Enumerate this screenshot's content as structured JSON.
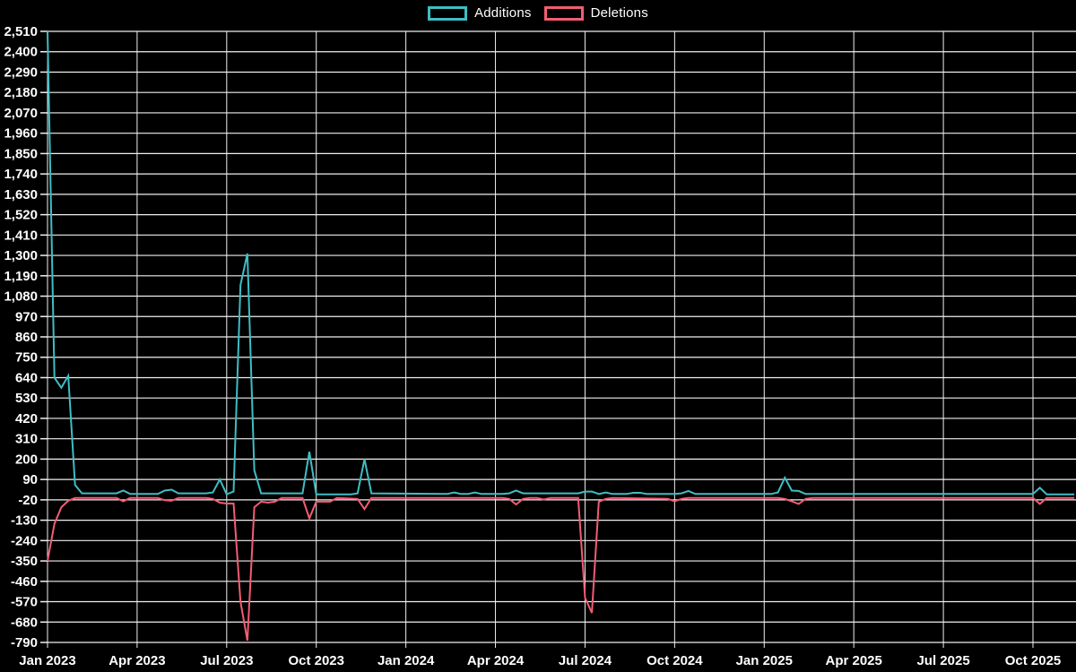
{
  "legend": {
    "items": [
      {
        "label": "Additions",
        "color": "#3ebec4"
      },
      {
        "label": "Deletions",
        "color": "#f25d73"
      }
    ]
  },
  "chart_data": {
    "type": "line",
    "title": "",
    "background": "#000000",
    "grid": {
      "horizontal": true,
      "vertical": true,
      "color": "#f0f0f0"
    },
    "legend_position": "top-center",
    "y_axis": {
      "min": -790,
      "max": 2510,
      "tick_step": 110,
      "tick_labels": [
        "2,510",
        "2,400",
        "2,290",
        "2,180",
        "2,070",
        "1,960",
        "1,850",
        "1,740",
        "1,630",
        "1,520",
        "1,410",
        "1,300",
        "1,190",
        "1,080",
        "970",
        "860",
        "750",
        "640",
        "530",
        "420",
        "310",
        "200",
        "90",
        "-20",
        "-130",
        "-240",
        "-350",
        "-460",
        "-570",
        "-680",
        "-790"
      ]
    },
    "x_axis": {
      "unit": "weeks since Jan 2023",
      "tick_labels": [
        "Jan 2023",
        "Apr 2023",
        "Jul 2023",
        "Oct 2023",
        "Jan 2024",
        "Apr 2024",
        "Jul 2024",
        "Oct 2024",
        "Jan 2025",
        "Apr 2025",
        "Jul 2025",
        "Oct 2025"
      ],
      "weeks_per_tick": 13,
      "total_weeks": 149
    },
    "series": [
      {
        "name": "Additions",
        "color": "#3ebec4",
        "points": [
          [
            0,
            2510
          ],
          [
            1,
            640
          ],
          [
            2,
            585
          ],
          [
            3,
            650
          ],
          [
            4,
            60
          ],
          [
            5,
            15
          ],
          [
            9,
            15
          ],
          [
            10,
            15
          ],
          [
            11,
            30
          ],
          [
            12,
            12
          ],
          [
            16,
            12
          ],
          [
            17,
            30
          ],
          [
            18,
            35
          ],
          [
            19,
            15
          ],
          [
            23,
            15
          ],
          [
            24,
            20
          ],
          [
            25,
            90
          ],
          [
            26,
            10
          ],
          [
            27,
            25
          ],
          [
            28,
            1140
          ],
          [
            29,
            1310
          ],
          [
            30,
            140
          ],
          [
            31,
            15
          ],
          [
            37,
            15
          ],
          [
            38,
            240
          ],
          [
            39,
            10
          ],
          [
            44,
            10
          ],
          [
            45,
            15
          ],
          [
            46,
            200
          ],
          [
            47,
            15
          ],
          [
            58,
            12
          ],
          [
            59,
            20
          ],
          [
            60,
            12
          ],
          [
            61,
            12
          ],
          [
            62,
            20
          ],
          [
            63,
            12
          ],
          [
            66,
            12
          ],
          [
            67,
            15
          ],
          [
            68,
            30
          ],
          [
            69,
            15
          ],
          [
            77,
            15
          ],
          [
            78,
            25
          ],
          [
            79,
            25
          ],
          [
            80,
            12
          ],
          [
            81,
            20
          ],
          [
            82,
            12
          ],
          [
            84,
            12
          ],
          [
            85,
            18
          ],
          [
            86,
            18
          ],
          [
            87,
            12
          ],
          [
            91,
            12
          ],
          [
            92,
            15
          ],
          [
            93,
            28
          ],
          [
            94,
            12
          ],
          [
            105,
            12
          ],
          [
            106,
            20
          ],
          [
            107,
            100
          ],
          [
            108,
            30
          ],
          [
            109,
            28
          ],
          [
            110,
            12
          ],
          [
            143,
            12
          ],
          [
            144,
            45
          ],
          [
            145,
            10
          ],
          [
            149,
            10
          ]
        ]
      },
      {
        "name": "Deletions",
        "color": "#f25d73",
        "points": [
          [
            0,
            -350
          ],
          [
            1,
            -150
          ],
          [
            2,
            -60
          ],
          [
            3,
            -25
          ],
          [
            4,
            -10
          ],
          [
            10,
            -10
          ],
          [
            11,
            -28
          ],
          [
            12,
            -10
          ],
          [
            16,
            -10
          ],
          [
            17,
            -22
          ],
          [
            18,
            -25
          ],
          [
            19,
            -10
          ],
          [
            23,
            -10
          ],
          [
            24,
            -15
          ],
          [
            25,
            -35
          ],
          [
            26,
            -40
          ],
          [
            27,
            -40
          ],
          [
            28,
            -570
          ],
          [
            29,
            -780
          ],
          [
            30,
            -60
          ],
          [
            31,
            -30
          ],
          [
            32,
            -35
          ],
          [
            33,
            -30
          ],
          [
            34,
            -10
          ],
          [
            37,
            -10
          ],
          [
            38,
            -120
          ],
          [
            39,
            -30
          ],
          [
            40,
            -30
          ],
          [
            41,
            -30
          ],
          [
            42,
            -10
          ],
          [
            45,
            -15
          ],
          [
            46,
            -70
          ],
          [
            47,
            -10
          ],
          [
            66,
            -10
          ],
          [
            67,
            -15
          ],
          [
            68,
            -45
          ],
          [
            69,
            -15
          ],
          [
            70,
            -10
          ],
          [
            71,
            -10
          ],
          [
            72,
            -18
          ],
          [
            73,
            -10
          ],
          [
            77,
            -10
          ],
          [
            78,
            -550
          ],
          [
            79,
            -630
          ],
          [
            80,
            -30
          ],
          [
            81,
            -15
          ],
          [
            82,
            -10
          ],
          [
            90,
            -15
          ],
          [
            91,
            -28
          ],
          [
            92,
            -15
          ],
          [
            93,
            -10
          ],
          [
            106,
            -10
          ],
          [
            107,
            -15
          ],
          [
            108,
            -28
          ],
          [
            109,
            -42
          ],
          [
            110,
            -15
          ],
          [
            111,
            -10
          ],
          [
            143,
            -10
          ],
          [
            144,
            -42
          ],
          [
            145,
            -10
          ],
          [
            149,
            -10
          ]
        ]
      }
    ]
  }
}
